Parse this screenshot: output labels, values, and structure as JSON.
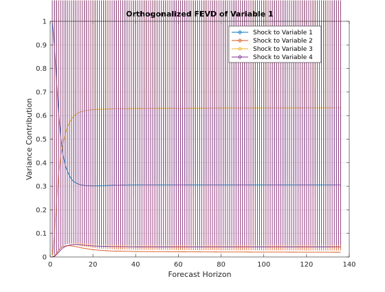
{
  "chart_data": {
    "type": "line",
    "title": "Orthogonalized FEVD of Variable 1",
    "xlabel": "Forecast Horizon",
    "ylabel": "Variance Contribution",
    "xlim": [
      0,
      140
    ],
    "ylim": [
      0,
      1
    ],
    "xticks": [
      0,
      20,
      40,
      60,
      80,
      100,
      120,
      140
    ],
    "yticks": [
      0,
      0.1,
      0.2,
      0.3,
      0.4,
      0.5,
      0.6,
      0.7,
      0.8,
      0.9,
      1
    ],
    "xtick_labels": [
      "0",
      "20",
      "40",
      "60",
      "80",
      "100",
      "120",
      "140"
    ],
    "ytick_labels": [
      "0",
      "0.1",
      "0.2",
      "0.3",
      "0.4",
      "0.5",
      "0.6",
      "0.7",
      "0.8",
      "0.9",
      "1"
    ],
    "grid": true,
    "legend_position": "top-right",
    "marker": "diamond",
    "x_range": [
      1,
      136
    ],
    "series": [
      {
        "name": "Shock to Variable 1",
        "color": "#0072BD",
        "key_points": [
          [
            1,
            1.0
          ],
          [
            2,
            0.885
          ],
          [
            3,
            0.745
          ],
          [
            4,
            0.605
          ],
          [
            5,
            0.505
          ],
          [
            6,
            0.435
          ],
          [
            7,
            0.39
          ],
          [
            8,
            0.365
          ],
          [
            9,
            0.345
          ],
          [
            10,
            0.33
          ],
          [
            11,
            0.32
          ],
          [
            12,
            0.315
          ],
          [
            13,
            0.31
          ],
          [
            14,
            0.307
          ],
          [
            15,
            0.305
          ],
          [
            17,
            0.303
          ],
          [
            20,
            0.302
          ],
          [
            25,
            0.303
          ],
          [
            30,
            0.305
          ],
          [
            40,
            0.306
          ],
          [
            136,
            0.306
          ]
        ]
      },
      {
        "name": "Shock to Variable 2",
        "color": "#D95319",
        "key_points": [
          [
            1,
            0.0
          ],
          [
            2,
            0.005
          ],
          [
            3,
            0.015
          ],
          [
            4,
            0.028
          ],
          [
            5,
            0.038
          ],
          [
            6,
            0.044
          ],
          [
            7,
            0.047
          ],
          [
            8,
            0.048
          ],
          [
            10,
            0.047
          ],
          [
            12,
            0.044
          ],
          [
            15,
            0.038
          ],
          [
            20,
            0.031
          ],
          [
            25,
            0.027
          ],
          [
            30,
            0.025
          ],
          [
            40,
            0.023
          ],
          [
            60,
            0.022
          ],
          [
            80,
            0.021
          ],
          [
            136,
            0.02
          ]
        ]
      },
      {
        "name": "Shock to Variable 3",
        "color": "#EDB120",
        "key_points": [
          [
            1,
            0.0
          ],
          [
            2,
            0.1
          ],
          [
            3,
            0.235
          ],
          [
            4,
            0.355
          ],
          [
            5,
            0.43
          ],
          [
            6,
            0.48
          ],
          [
            7,
            0.52
          ],
          [
            8,
            0.55
          ],
          [
            9,
            0.57
          ],
          [
            10,
            0.585
          ],
          [
            11,
            0.597
          ],
          [
            12,
            0.605
          ],
          [
            13,
            0.611
          ],
          [
            15,
            0.618
          ],
          [
            17,
            0.622
          ],
          [
            20,
            0.625
          ],
          [
            25,
            0.627
          ],
          [
            30,
            0.629
          ],
          [
            40,
            0.63
          ],
          [
            60,
            0.631
          ],
          [
            80,
            0.632
          ],
          [
            136,
            0.633
          ]
        ]
      },
      {
        "name": "Shock to Variable 4",
        "color": "#7E2F8E",
        "key_points": [
          [
            1,
            0.0
          ],
          [
            2,
            0.002
          ],
          [
            3,
            0.01
          ],
          [
            4,
            0.02
          ],
          [
            5,
            0.03
          ],
          [
            6,
            0.038
          ],
          [
            7,
            0.044
          ],
          [
            8,
            0.048
          ],
          [
            10,
            0.052
          ],
          [
            12,
            0.053
          ],
          [
            14,
            0.052
          ],
          [
            17,
            0.049
          ],
          [
            20,
            0.047
          ],
          [
            25,
            0.045
          ],
          [
            30,
            0.044
          ],
          [
            40,
            0.043
          ],
          [
            60,
            0.043
          ],
          [
            136,
            0.043
          ]
        ]
      }
    ]
  }
}
